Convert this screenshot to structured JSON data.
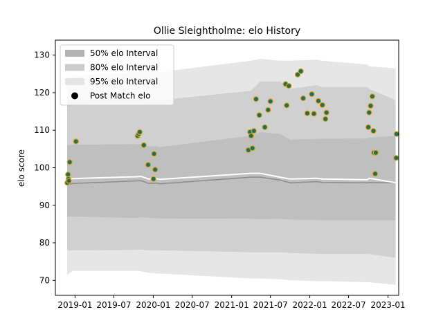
{
  "chart_data": {
    "type": "scatter",
    "title": "Ollie Sleightholme: elo History",
    "xlabel": "",
    "ylabel": "elo score",
    "ylim": [
      66,
      134
    ],
    "xlim": [
      "2018-10-01",
      "2023-02-20"
    ],
    "x_ticks": [
      "2019-01",
      "2019-07",
      "2020-01",
      "2020-07",
      "2021-01",
      "2021-07",
      "2022-01",
      "2022-07",
      "2023-01"
    ],
    "y_ticks": [
      70,
      80,
      90,
      100,
      110,
      120,
      130
    ],
    "grid": false,
    "legend": {
      "position": "top-left",
      "entries": [
        {
          "label": "50% elo Interval",
          "kind": "band",
          "color": "#b3b3b3"
        },
        {
          "label": "80% elo Interval",
          "kind": "band",
          "color": "#cccccc"
        },
        {
          "label": "95% elo Interval",
          "kind": "band",
          "color": "#e5e5e5"
        },
        {
          "label": "Post Match elo",
          "kind": "marker",
          "color": "#000000"
        }
      ]
    },
    "colors": {
      "band50": "#bfbfbf",
      "band80": "#d0d0d0",
      "band95": "#e6e6e6",
      "median_line": "#8c8c8c",
      "mean_line": "#ffffff",
      "marker_face": "#1f6f5c",
      "marker_edge": "#e8a317"
    },
    "bands": {
      "x": [
        "2018-11-25",
        "2018-12-20",
        "2019-10-15",
        "2019-11-05",
        "2019-12-10",
        "2020-01-15",
        "2020-02-01",
        "2021-04-01",
        "2021-05-15",
        "2021-08-15",
        "2021-10-01",
        "2022-02-01",
        "2022-03-01",
        "2022-09-25",
        "2022-10-05",
        "2023-02-05"
      ],
      "median": [
        95.5,
        95.8,
        96.5,
        96.6,
        95.8,
        95.9,
        95.7,
        97.5,
        97.5,
        96.7,
        96.0,
        96.3,
        96.1,
        96.0,
        96.1,
        96.0
      ],
      "mean": [
        96.8,
        97.1,
        97.6,
        97.7,
        97.0,
        97.1,
        96.9,
        98.5,
        98.5,
        97.5,
        97.0,
        97.2,
        97.0,
        96.8,
        97.2,
        96.0
      ],
      "p25": [
        87.0,
        87.0,
        86.6,
        86.8,
        86.7,
        86.5,
        86.5,
        86.4,
        86.3,
        86.4,
        86.2,
        86.1,
        86.0,
        86.0,
        86.0,
        86.0
      ],
      "p75": [
        106.0,
        106.1,
        106.3,
        106.3,
        105.7,
        105.7,
        105.5,
        108.5,
        109.5,
        109.0,
        107.5,
        107.7,
        107.7,
        107.8,
        108.0,
        108.5
      ],
      "p10": [
        78.0,
        78.0,
        78.1,
        78.2,
        78.0,
        78.0,
        78.0,
        77.5,
        77.5,
        77.5,
        77.3,
        77.1,
        77.0,
        77.0,
        77.0,
        76.0
      ],
      "p90": [
        118.0,
        118.0,
        118.5,
        118.5,
        118.0,
        118.0,
        118.0,
        120.5,
        123.0,
        123.0,
        121.0,
        122.0,
        121.5,
        121.5,
        121.0,
        118.0
      ],
      "p2_5": [
        71.5,
        72.5,
        72.5,
        72.4,
        72.0,
        71.8,
        71.8,
        70.5,
        70.5,
        70.3,
        70.0,
        69.8,
        69.8,
        69.5,
        69.5,
        68.8
      ],
      "p97_5": [
        124.0,
        124.5,
        125.5,
        125.5,
        125.5,
        125.5,
        125.5,
        128.5,
        129.0,
        128.5,
        128.5,
        128.8,
        128.5,
        127.5,
        127.0,
        126.5
      ]
    },
    "points": {
      "x": [
        "2018-11-26",
        "2018-11-29",
        "2018-12-01",
        "2018-12-03",
        "2018-12-07",
        "2019-01-05",
        "2019-10-20",
        "2019-10-25",
        "2019-10-30",
        "2019-11-18",
        "2019-12-08",
        "2020-01-02",
        "2020-01-05",
        "2020-01-10",
        "2021-03-20",
        "2021-03-28",
        "2021-04-02",
        "2021-04-08",
        "2021-04-15",
        "2021-04-25",
        "2021-05-10",
        "2021-06-05",
        "2021-06-20",
        "2021-07-01",
        "2021-09-10",
        "2021-09-15",
        "2021-09-25",
        "2021-11-05",
        "2021-11-20",
        "2021-12-01",
        "2021-12-20",
        "2022-01-10",
        "2022-01-20",
        "2022-02-10",
        "2022-03-01",
        "2022-03-15",
        "2022-03-20",
        "2022-10-01",
        "2022-10-05",
        "2022-10-12",
        "2022-10-20",
        "2022-10-25",
        "2022-10-28",
        "2022-11-02",
        "2022-11-05",
        "2023-02-08",
        "2023-02-10"
      ],
      "y": [
        96.0,
        98.2,
        97.0,
        96.5,
        101.5,
        107.0,
        108.5,
        109.0,
        109.5,
        106.0,
        100.8,
        97.0,
        103.7,
        99.5,
        104.7,
        109.5,
        108.5,
        105.2,
        109.8,
        118.3,
        114.0,
        110.8,
        115.4,
        117.7,
        122.3,
        116.6,
        121.8,
        124.8,
        125.7,
        118.5,
        114.5,
        119.6,
        114.4,
        117.8,
        116.7,
        113.0,
        114.7,
        110.8,
        114.7,
        116.5,
        119.0,
        109.8,
        104.0,
        98.4,
        104.0,
        102.6,
        109.0
      ]
    }
  }
}
